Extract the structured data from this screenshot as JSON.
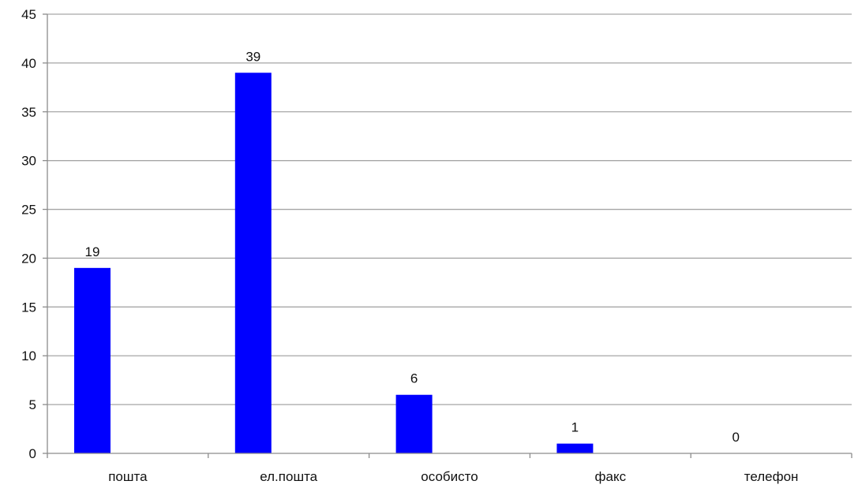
{
  "chart_data": {
    "type": "bar",
    "categories": [
      "пошта",
      "ел.пошта",
      "особисто",
      "факс",
      "телефон"
    ],
    "values": [
      19,
      39,
      6,
      1,
      0
    ],
    "data_labels": [
      "19",
      "39",
      "6",
      "1",
      "0"
    ],
    "title": "",
    "xlabel": "",
    "ylabel": "",
    "ylim": [
      0,
      45
    ],
    "yticks": [
      0,
      5,
      10,
      15,
      20,
      25,
      30,
      35,
      40,
      45
    ],
    "grid": true,
    "legend": "none",
    "colors": {
      "bar": "#0000ff",
      "grid": "#a6a6a6",
      "axis": "#8c8c8c"
    }
  }
}
